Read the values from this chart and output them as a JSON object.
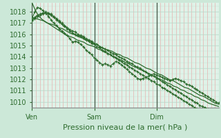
{
  "background_color": "#cce8d8",
  "plot_bg_color": "#dff2e8",
  "grid_color_vertical": "#e8a0a0",
  "grid_color_horizontal": "#b8d8c8",
  "line_color": "#2d6b2d",
  "dark_line_color": "#1a4a1a",
  "ylim": [
    1009.5,
    1018.8
  ],
  "ylabel_ticks": [
    1010,
    1011,
    1012,
    1013,
    1014,
    1015,
    1016,
    1017,
    1018
  ],
  "xlabel": "Pression niveau de la mer( hPa )",
  "day_labels": [
    "Ven",
    "Sam",
    "Dim"
  ],
  "tick_label_fontsize": 7,
  "xlabel_fontsize": 8,
  "series": [
    {
      "data": [
        1018.8,
        1018.1,
        1017.6,
        1017.3,
        1017.1,
        1016.9,
        1016.7,
        1016.5,
        1016.3,
        1016.1,
        1015.9,
        1015.8,
        1015.7,
        1015.5,
        1015.4,
        1015.3,
        1015.1,
        1015.0,
        1014.9,
        1014.7,
        1014.6,
        1014.4,
        1014.3,
        1014.1,
        1014.0,
        1013.8,
        1013.7,
        1013.5,
        1013.4,
        1013.2,
        1013.1,
        1012.9,
        1012.8,
        1012.6,
        1012.5,
        1012.3,
        1012.2,
        1012.0,
        1011.9,
        1011.7,
        1011.6,
        1011.4,
        1011.3,
        1011.1,
        1011.0,
        1010.8,
        1010.7,
        1010.5,
        1010.4,
        1010.2,
        1010.1,
        1009.9,
        1009.8,
        1009.7,
        1009.6
      ],
      "marker": false
    },
    {
      "data": [
        1017.5,
        1017.4,
        1017.3,
        1017.2,
        1017.0,
        1016.9,
        1016.8,
        1016.6,
        1016.5,
        1016.3,
        1016.1,
        1016.0,
        1015.8,
        1015.7,
        1015.5,
        1015.4,
        1015.2,
        1015.1,
        1014.9,
        1014.7,
        1014.6,
        1014.5,
        1014.3,
        1014.2,
        1014.0,
        1013.9,
        1013.7,
        1013.5,
        1013.4,
        1013.2,
        1013.0,
        1012.9,
        1012.7,
        1012.5,
        1012.4,
        1012.2,
        1012.0,
        1011.9,
        1011.7,
        1011.5,
        1011.3,
        1011.2,
        1011.0,
        1010.8,
        1010.6,
        1010.5,
        1010.3,
        1010.1,
        1009.9,
        1009.8
      ],
      "marker": false
    },
    {
      "data": [
        1017.4,
        1018.0,
        1018.4,
        1018.3,
        1018.1,
        1017.9,
        1017.6,
        1017.3,
        1017.0,
        1016.8,
        1016.5,
        1016.3,
        1016.1,
        1015.9,
        1015.6,
        1015.3,
        1015.4,
        1015.3,
        1015.1,
        1014.9,
        1014.6,
        1014.4,
        1014.2,
        1013.9,
        1013.7,
        1013.5,
        1013.3,
        1013.4,
        1013.3,
        1013.2,
        1013.4,
        1013.6,
        1013.5,
        1013.3,
        1013.1,
        1012.9,
        1012.7,
        1012.5,
        1012.3,
        1012.1,
        1012.0,
        1012.1,
        1012.2,
        1012.3,
        1012.4,
        1012.5,
        1012.4,
        1012.3,
        1012.2,
        1012.1,
        1012.0,
        1011.9,
        1012.0,
        1012.1,
        1012.0,
        1011.9,
        1011.8,
        1011.6,
        1011.5,
        1011.4,
        1011.2,
        1011.1,
        1010.9,
        1010.8,
        1010.6,
        1010.5,
        1010.3,
        1010.2,
        1010.0,
        1009.9
      ],
      "marker": true
    },
    {
      "data": [
        1017.3,
        1017.5,
        1017.7,
        1017.8,
        1017.9,
        1018.0,
        1017.9,
        1017.8,
        1017.6,
        1017.4,
        1017.2,
        1017.0,
        1016.8,
        1016.6,
        1016.4,
        1016.3,
        1016.2,
        1016.0,
        1015.9,
        1015.8,
        1015.6,
        1015.5,
        1015.4,
        1015.2,
        1015.1,
        1014.9,
        1014.8,
        1014.7,
        1014.6,
        1014.4,
        1014.3,
        1014.2,
        1014.0,
        1013.9,
        1013.8,
        1013.6,
        1013.5,
        1013.4,
        1013.2,
        1013.1,
        1013.0,
        1012.8,
        1012.7,
        1012.5,
        1012.4,
        1012.3,
        1012.1,
        1012.0,
        1011.8,
        1011.7,
        1011.5,
        1011.4,
        1011.2,
        1011.1,
        1010.9,
        1010.8,
        1010.6,
        1010.5,
        1010.3,
        1010.2,
        1010.0,
        1009.9,
        1009.7,
        1009.6,
        1009.5,
        1009.4,
        1009.3,
        1009.2,
        1009.1,
        1009.0
      ],
      "marker": true
    },
    {
      "data": [
        1017.2,
        1017.4,
        1017.6,
        1017.7,
        1017.8,
        1017.9,
        1017.8,
        1017.7,
        1017.5,
        1017.3,
        1017.1,
        1016.9,
        1016.7,
        1016.5,
        1016.3,
        1016.1,
        1016.0,
        1015.9,
        1015.8,
        1015.7,
        1015.5,
        1015.4,
        1015.2,
        1015.1,
        1014.9,
        1014.8,
        1014.6,
        1014.5,
        1014.3,
        1014.2,
        1014.0,
        1013.9,
        1013.7,
        1013.6,
        1013.4,
        1013.3,
        1013.1,
        1013.0,
        1012.8,
        1012.7,
        1012.5,
        1012.4,
        1012.2,
        1012.1,
        1011.9,
        1011.8,
        1011.6,
        1011.5,
        1011.3,
        1011.2,
        1011.0,
        1010.9,
        1010.7,
        1010.6,
        1010.4,
        1010.3,
        1010.1,
        1010.0,
        1009.8,
        1009.7,
        1009.5,
        1009.4,
        1009.3,
        1009.2,
        1009.1,
        1009.0,
        1009.0,
        1009.0,
        1009.0,
        1009.0
      ],
      "marker": true
    }
  ]
}
